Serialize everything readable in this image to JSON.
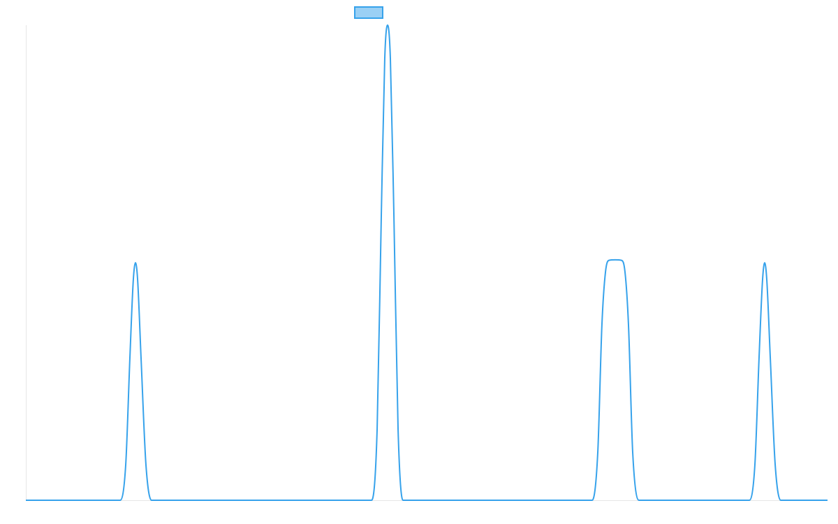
{
  "chart_data": {
    "type": "line",
    "legend": "top",
    "series": [
      {
        "color": "#36a2eb",
        "x": [
          0,
          11.76,
          12.46,
          12.98,
          13.41,
          13.68,
          13.94,
          14.37,
          14.98,
          15.68,
          43.12,
          43.82,
          44.34,
          44.77,
          45.12,
          45.47,
          45.91,
          46.43,
          47.04,
          70.64,
          71.34,
          71.86,
          72.3,
          72.74,
          73.52,
          74.3,
          74.74,
          75.17,
          75.7,
          76.48,
          90.24,
          90.94,
          91.46,
          91.9,
          92.16,
          92.42,
          92.86,
          93.47,
          94.16,
          100
        ],
        "values": [
          0,
          0,
          7.5,
          30,
          46.5,
          50,
          46.5,
          30,
          7.5,
          0,
          0,
          15,
          60,
          93,
          100,
          93,
          60,
          15,
          0,
          0,
          10,
          37,
          48,
          50.5,
          50.6,
          50.5,
          48,
          37,
          10,
          0,
          0,
          7.5,
          30,
          46.5,
          50,
          46.5,
          30,
          7.5,
          0,
          0
        ]
      }
    ],
    "xlim": [
      0,
      100
    ],
    "ylim": [
      0,
      100
    ]
  }
}
